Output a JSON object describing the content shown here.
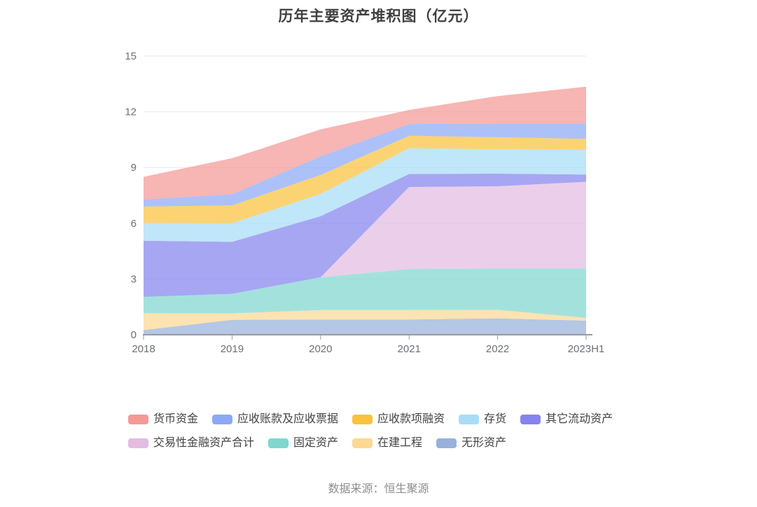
{
  "source_note": "数据来源：恒生聚源",
  "chart_data": {
    "type": "area",
    "stacked": true,
    "title": "历年主要资产堆积图（亿元）",
    "x": [
      "2018",
      "2019",
      "2020",
      "2021",
      "2022",
      "2023H1"
    ],
    "xlabel": "",
    "ylabel": "",
    "ylim": [
      0,
      15
    ],
    "yticks": [
      0,
      3,
      6,
      9,
      12,
      15
    ],
    "grid": true,
    "legend_position": "bottom",
    "stack_note": "series listed in legend order; stacked bottom-to-top in reverse legend order (无形资产 at bottom, 货币资金 on top)",
    "fill_opacity": 0.72,
    "axis_color": "#6E7079",
    "axis_line_color": "#9A9A9A",
    "gridline_color": "#E4EAF6",
    "series": [
      {
        "name": "货币资金",
        "color": "#F49995",
        "values": [
          1.22,
          1.94,
          1.45,
          0.76,
          1.48,
          1.99
        ]
      },
      {
        "name": "应收账款及应收票据",
        "color": "#8CA9F5",
        "values": [
          0.38,
          0.6,
          1.0,
          0.63,
          0.73,
          0.82
        ]
      },
      {
        "name": "应收款项融资",
        "color": "#FBC23D",
        "values": [
          0.88,
          0.96,
          1.02,
          0.67,
          0.65,
          0.59
        ]
      },
      {
        "name": "存货",
        "color": "#A8DCF7",
        "values": [
          0.96,
          1.0,
          1.2,
          1.39,
          1.31,
          1.33
        ]
      },
      {
        "name": "其它流动资产",
        "color": "#8583EE",
        "values": [
          3.02,
          2.8,
          3.29,
          0.7,
          0.68,
          0.39
        ]
      },
      {
        "name": "交易性金融资产合计",
        "color": "#E3BCE2",
        "values": [
          0.0,
          0.0,
          0.0,
          4.41,
          4.43,
          4.67
        ]
      },
      {
        "name": "固定资产",
        "color": "#7FD7CE",
        "values": [
          0.88,
          1.05,
          1.76,
          2.21,
          2.22,
          2.65
        ]
      },
      {
        "name": "在建工程",
        "color": "#FBD893",
        "values": [
          0.91,
          0.35,
          0.51,
          0.51,
          0.46,
          0.15
        ]
      },
      {
        "name": "无形资产",
        "color": "#97B1DB",
        "values": [
          0.25,
          0.8,
          0.82,
          0.82,
          0.88,
          0.76
        ]
      }
    ],
    "stack_totals": [
      8.5,
      9.5,
      11.05,
      12.1,
      12.84,
      13.35
    ]
  }
}
